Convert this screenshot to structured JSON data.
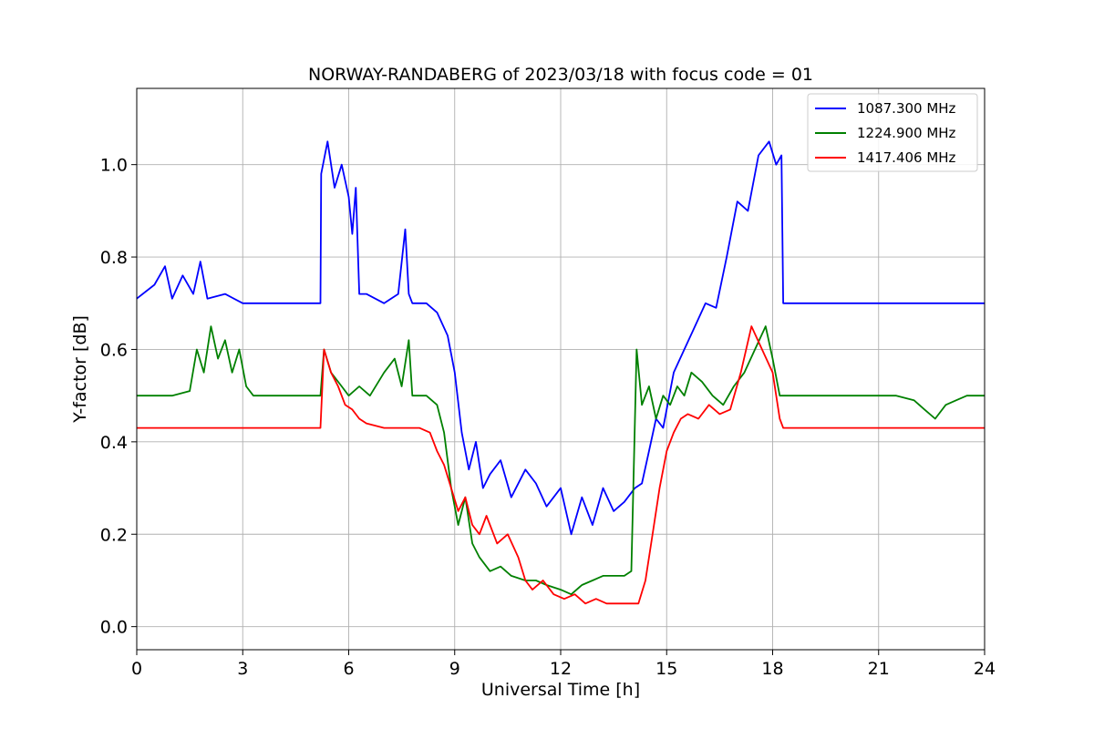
{
  "chart_data": {
    "type": "line",
    "title": "NORWAY-RANDABERG of 2023/03/18 with focus code = 01",
    "xlabel": "Universal Time [h]",
    "ylabel": "Y-factor [dB]",
    "xlim": [
      0,
      24
    ],
    "ylim": [
      -0.05,
      1.165
    ],
    "xticks": [
      0,
      3,
      6,
      9,
      12,
      15,
      18,
      21,
      24
    ],
    "xtick_labels": [
      "0",
      "3",
      "6",
      "9",
      "12",
      "15",
      "18",
      "21",
      "24"
    ],
    "yticks": [
      0.0,
      0.2,
      0.4,
      0.6,
      0.8,
      1.0
    ],
    "ytick_labels": [
      "0.0",
      "0.2",
      "0.4",
      "0.6",
      "0.8",
      "1.0"
    ],
    "grid": true,
    "legend_position": "top-right",
    "series": [
      {
        "name": "1087.300 MHz",
        "color": "#0000ff",
        "x": [
          0,
          0.5,
          0.8,
          1.0,
          1.3,
          1.6,
          1.8,
          2.0,
          2.5,
          3.0,
          4.0,
          5.0,
          5.2,
          5.22,
          5.4,
          5.6,
          5.8,
          6.0,
          6.1,
          6.2,
          6.3,
          6.5,
          7.0,
          7.4,
          7.6,
          7.7,
          7.8,
          8.2,
          8.5,
          8.8,
          9.0,
          9.2,
          9.4,
          9.6,
          9.8,
          10.0,
          10.3,
          10.6,
          11.0,
          11.3,
          11.6,
          12.0,
          12.3,
          12.6,
          12.9,
          13.2,
          13.5,
          13.8,
          14.1,
          14.3,
          14.5,
          14.7,
          14.9,
          15.2,
          15.5,
          15.8,
          16.1,
          16.4,
          16.7,
          17.0,
          17.3,
          17.6,
          17.9,
          18.1,
          18.25,
          18.3,
          18.5,
          19.0,
          19.5,
          20.0,
          21.0,
          22.0,
          23.0,
          23.5,
          24.0
        ],
        "values": [
          0.71,
          0.74,
          0.78,
          0.71,
          0.76,
          0.72,
          0.79,
          0.71,
          0.72,
          0.7,
          0.7,
          0.7,
          0.7,
          0.98,
          1.05,
          0.95,
          1.0,
          0.93,
          0.85,
          0.95,
          0.72,
          0.72,
          0.7,
          0.72,
          0.86,
          0.72,
          0.7,
          0.7,
          0.68,
          0.63,
          0.55,
          0.42,
          0.34,
          0.4,
          0.3,
          0.33,
          0.36,
          0.28,
          0.34,
          0.31,
          0.26,
          0.3,
          0.2,
          0.28,
          0.22,
          0.3,
          0.25,
          0.27,
          0.3,
          0.31,
          0.38,
          0.45,
          0.43,
          0.55,
          0.6,
          0.65,
          0.7,
          0.69,
          0.8,
          0.92,
          0.9,
          1.02,
          1.05,
          1.0,
          1.02,
          0.7,
          0.7,
          0.7,
          0.7,
          0.7,
          0.7,
          0.7,
          0.7,
          0.7,
          0.7
        ]
      },
      {
        "name": "1224.900 MHz",
        "color": "#008000",
        "x": [
          0,
          0.5,
          1.0,
          1.5,
          1.7,
          1.9,
          2.1,
          2.3,
          2.5,
          2.7,
          2.9,
          3.1,
          3.3,
          4.0,
          5.0,
          5.2,
          5.3,
          5.5,
          5.8,
          6.0,
          6.3,
          6.6,
          7.0,
          7.3,
          7.5,
          7.7,
          7.8,
          8.2,
          8.5,
          8.7,
          8.9,
          9.1,
          9.3,
          9.5,
          9.7,
          10.0,
          10.3,
          10.6,
          11.0,
          11.3,
          11.6,
          12.0,
          12.3,
          12.6,
          12.9,
          13.2,
          13.5,
          13.8,
          14.0,
          14.15,
          14.3,
          14.5,
          14.7,
          14.9,
          15.1,
          15.3,
          15.5,
          15.7,
          16.0,
          16.3,
          16.6,
          16.9,
          17.2,
          17.5,
          17.8,
          18.0,
          18.2,
          18.3,
          18.5,
          19.0,
          19.5,
          20.0,
          21.0,
          21.5,
          22.0,
          22.3,
          22.6,
          22.9,
          23.2,
          23.5,
          24.0
        ],
        "values": [
          0.5,
          0.5,
          0.5,
          0.51,
          0.6,
          0.55,
          0.65,
          0.58,
          0.62,
          0.55,
          0.6,
          0.52,
          0.5,
          0.5,
          0.5,
          0.5,
          0.6,
          0.55,
          0.52,
          0.5,
          0.52,
          0.5,
          0.55,
          0.58,
          0.52,
          0.62,
          0.5,
          0.5,
          0.48,
          0.42,
          0.3,
          0.22,
          0.28,
          0.18,
          0.15,
          0.12,
          0.13,
          0.11,
          0.1,
          0.1,
          0.09,
          0.08,
          0.07,
          0.09,
          0.1,
          0.11,
          0.11,
          0.11,
          0.12,
          0.6,
          0.48,
          0.52,
          0.45,
          0.5,
          0.48,
          0.52,
          0.5,
          0.55,
          0.53,
          0.5,
          0.48,
          0.52,
          0.55,
          0.6,
          0.65,
          0.58,
          0.5,
          0.5,
          0.5,
          0.5,
          0.5,
          0.5,
          0.5,
          0.5,
          0.49,
          0.47,
          0.45,
          0.48,
          0.49,
          0.5,
          0.5
        ]
      },
      {
        "name": "1417.406 MHz",
        "color": "#ff0000",
        "x": [
          0,
          1.0,
          2.0,
          3.0,
          4.0,
          5.0,
          5.2,
          5.3,
          5.5,
          5.7,
          5.9,
          6.1,
          6.3,
          6.5,
          7.0,
          7.5,
          8.0,
          8.3,
          8.5,
          8.7,
          8.9,
          9.1,
          9.3,
          9.5,
          9.7,
          9.9,
          10.2,
          10.5,
          10.8,
          11.0,
          11.2,
          11.5,
          11.8,
          12.1,
          12.4,
          12.7,
          13.0,
          13.3,
          13.6,
          13.9,
          14.2,
          14.4,
          14.6,
          14.8,
          15.0,
          15.2,
          15.4,
          15.6,
          15.9,
          16.2,
          16.5,
          16.8,
          17.1,
          17.4,
          17.7,
          18.0,
          18.2,
          18.3,
          18.5,
          19.0,
          19.5,
          20.0,
          21.0,
          22.0,
          23.0,
          23.5,
          24.0
        ],
        "values": [
          0.43,
          0.43,
          0.43,
          0.43,
          0.43,
          0.43,
          0.43,
          0.6,
          0.55,
          0.52,
          0.48,
          0.47,
          0.45,
          0.44,
          0.43,
          0.43,
          0.43,
          0.42,
          0.38,
          0.35,
          0.3,
          0.25,
          0.28,
          0.22,
          0.2,
          0.24,
          0.18,
          0.2,
          0.15,
          0.1,
          0.08,
          0.1,
          0.07,
          0.06,
          0.07,
          0.05,
          0.06,
          0.05,
          0.05,
          0.05,
          0.05,
          0.1,
          0.2,
          0.3,
          0.38,
          0.42,
          0.45,
          0.46,
          0.45,
          0.48,
          0.46,
          0.47,
          0.55,
          0.65,
          0.6,
          0.55,
          0.45,
          0.43,
          0.43,
          0.43,
          0.43,
          0.43,
          0.43,
          0.43,
          0.43,
          0.43,
          0.43
        ]
      }
    ]
  }
}
